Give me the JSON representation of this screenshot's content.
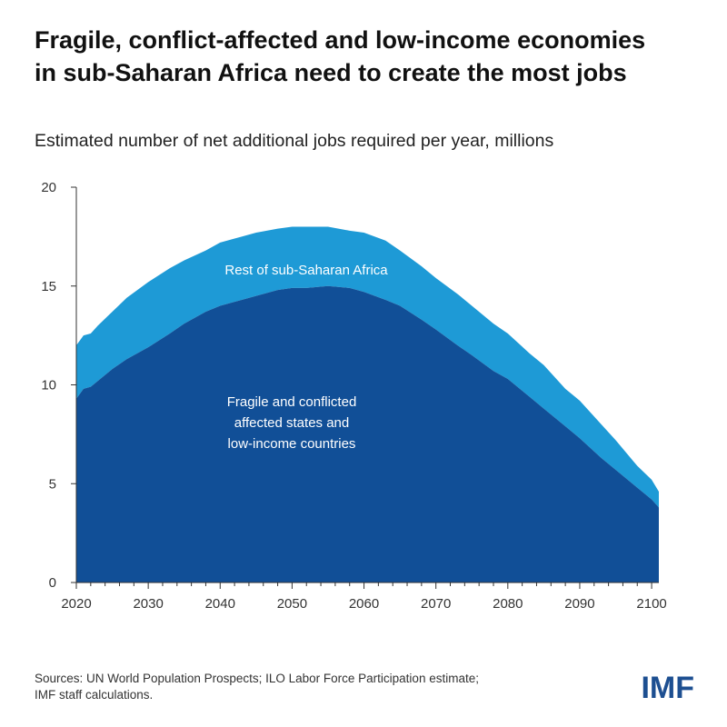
{
  "header": {
    "title_line1": "Fragile, conflict-affected and low-income economies",
    "title_line2": "in sub-Saharan Africa need to create the most jobs",
    "subtitle": "Estimated number of net additional jobs required per year, millions"
  },
  "footer": {
    "source_line1": "Sources: UN World Population Prospects; ILO Labor Force Participation estimate;",
    "source_line2": "IMF staff calculations.",
    "logo_text": "IMF"
  },
  "colors": {
    "fragile": "#114f97",
    "rest": "#1e9ad6",
    "logo": "#1d4f91"
  },
  "chart_data": {
    "type": "area",
    "stacked": true,
    "title": "",
    "xlabel": "",
    "ylabel": "",
    "xlim": [
      2020,
      2101
    ],
    "ylim": [
      0,
      20
    ],
    "x_ticks": [
      2020,
      2030,
      2040,
      2050,
      2060,
      2070,
      2080,
      2090,
      2100
    ],
    "y_ticks": [
      0,
      5,
      10,
      15,
      20
    ],
    "grid": false,
    "legend": "none",
    "x": [
      2020,
      2021,
      2022,
      2023,
      2025,
      2027,
      2030,
      2033,
      2035,
      2038,
      2040,
      2043,
      2045,
      2048,
      2050,
      2052,
      2055,
      2058,
      2060,
      2063,
      2065,
      2068,
      2070,
      2073,
      2075,
      2078,
      2080,
      2083,
      2085,
      2088,
      2090,
      2093,
      2095,
      2098,
      2100,
      2101
    ],
    "series": [
      {
        "name": "Fragile and conflicted affected states and low-income countries",
        "values": [
          9.3,
          9.8,
          9.9,
          10.2,
          10.8,
          11.3,
          11.9,
          12.6,
          13.1,
          13.7,
          14.0,
          14.3,
          14.5,
          14.8,
          14.9,
          14.9,
          15.0,
          14.9,
          14.7,
          14.3,
          14.0,
          13.3,
          12.8,
          12.0,
          11.5,
          10.7,
          10.3,
          9.4,
          8.8,
          7.9,
          7.3,
          6.3,
          5.7,
          4.8,
          4.2,
          3.8
        ]
      },
      {
        "name": "Rest of sub-Saharan Africa",
        "values": [
          2.7,
          2.7,
          2.7,
          2.8,
          2.9,
          3.1,
          3.3,
          3.3,
          3.2,
          3.1,
          3.2,
          3.2,
          3.2,
          3.1,
          3.1,
          3.1,
          3.0,
          2.9,
          3.0,
          3.0,
          2.8,
          2.7,
          2.6,
          2.6,
          2.5,
          2.4,
          2.3,
          2.2,
          2.2,
          1.9,
          1.9,
          1.7,
          1.5,
          1.1,
          1.0,
          0.8
        ]
      }
    ],
    "annotations": {
      "rest": "Rest of sub-Saharan Africa",
      "fragile_line1": "Fragile and conflicted",
      "fragile_line2": "affected states and",
      "fragile_line3": "low-income countries"
    }
  }
}
